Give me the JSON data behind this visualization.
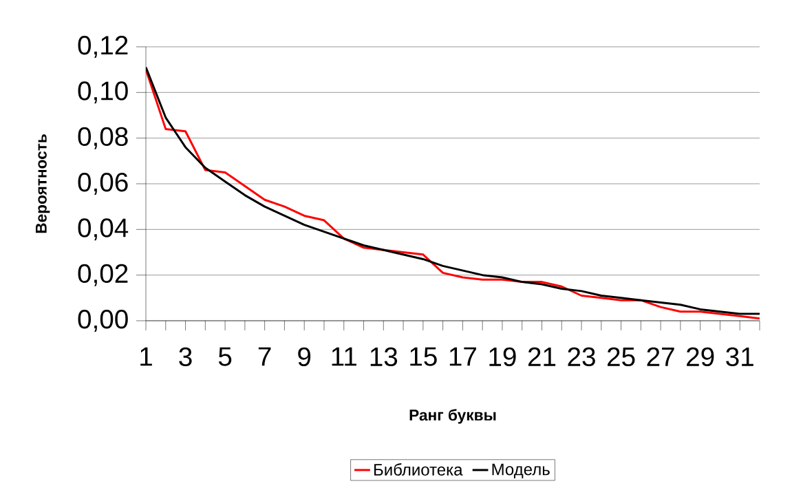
{
  "chart_data": {
    "type": "line",
    "xlabel": "Ранг буквы",
    "ylabel": "Вероятность",
    "categories": [
      "1",
      null,
      "3",
      null,
      "5",
      null,
      "7",
      null,
      "9",
      null,
      "11",
      null,
      "13",
      null,
      "15",
      null,
      "17",
      null,
      "19",
      null,
      "21",
      null,
      "23",
      null,
      "25",
      null,
      "27",
      null,
      "29",
      null,
      "31",
      null
    ],
    "series": [
      {
        "name": "Библиотека",
        "color": "#ff0000",
        "values": [
          0.11,
          0.084,
          0.083,
          0.066,
          0.065,
          0.059,
          0.053,
          0.05,
          0.046,
          0.044,
          0.036,
          0.032,
          0.031,
          0.03,
          0.029,
          0.021,
          0.019,
          0.018,
          0.018,
          0.017,
          0.017,
          0.015,
          0.011,
          0.01,
          0.009,
          0.009,
          0.006,
          0.004,
          0.004,
          0.003,
          0.002,
          0.001
        ]
      },
      {
        "name": "Модель",
        "color": "#000000",
        "values": [
          0.111,
          0.089,
          0.076,
          0.067,
          0.061,
          0.055,
          0.05,
          0.046,
          0.042,
          0.039,
          0.036,
          0.033,
          0.031,
          0.029,
          0.027,
          0.024,
          0.022,
          0.02,
          0.019,
          0.017,
          0.016,
          0.014,
          0.013,
          0.011,
          0.01,
          0.009,
          0.008,
          0.007,
          0.005,
          0.004,
          0.003,
          0.003
        ]
      }
    ],
    "ylim": [
      0,
      0.12
    ],
    "yticks": [
      {
        "value": 0,
        "label": "0,00"
      },
      {
        "value": 0.02,
        "label": "0,02"
      },
      {
        "value": 0.04,
        "label": "0,04"
      },
      {
        "value": 0.06,
        "label": "0,06"
      },
      {
        "value": 0.08,
        "label": "0,08"
      },
      {
        "value": 0.1,
        "label": "0,10"
      },
      {
        "value": 0.12,
        "label": "0,12"
      }
    ],
    "grid": "y",
    "legend": "bottom",
    "marker": "none",
    "line_style": "solid"
  }
}
